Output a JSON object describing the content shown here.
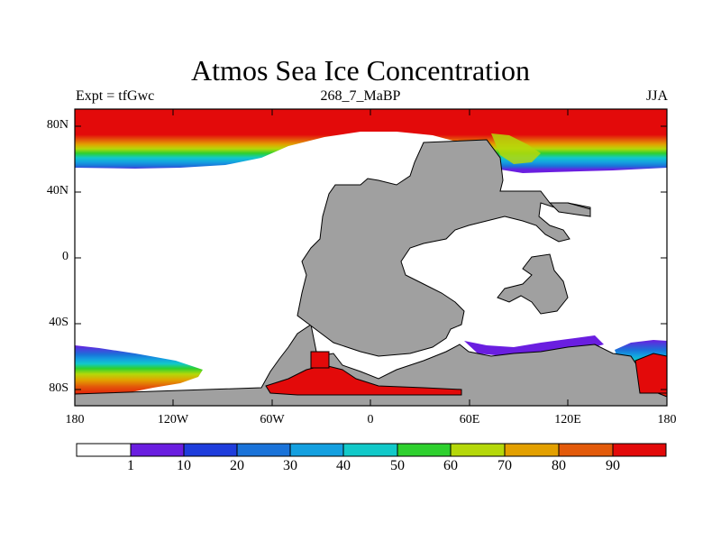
{
  "title": "Atmos Sea Ice Concentration",
  "subtitle_left": "Expt = tfGwc",
  "subtitle_center": "268_7_MaBP",
  "subtitle_right": "JJA",
  "lat_labels": [
    "80N",
    "40N",
    "0",
    "40S",
    "80S"
  ],
  "lon_labels": [
    "180",
    "120W",
    "60W",
    "0",
    "60E",
    "120E",
    "180"
  ],
  "colorbar": {
    "labels": [
      "1",
      "10",
      "20",
      "30",
      "40",
      "50",
      "60",
      "70",
      "80",
      "90"
    ],
    "colors": [
      "#ffffff",
      "#6a1ee0",
      "#1f3ddc",
      "#1a73d9",
      "#14a0e0",
      "#11c9c9",
      "#2ed02e",
      "#b5d80a",
      "#e3a000",
      "#e35a0a",
      "#e30a0a"
    ]
  },
  "colors": {
    "land": "#a0a0a0",
    "ocean": "#ffffff"
  }
}
